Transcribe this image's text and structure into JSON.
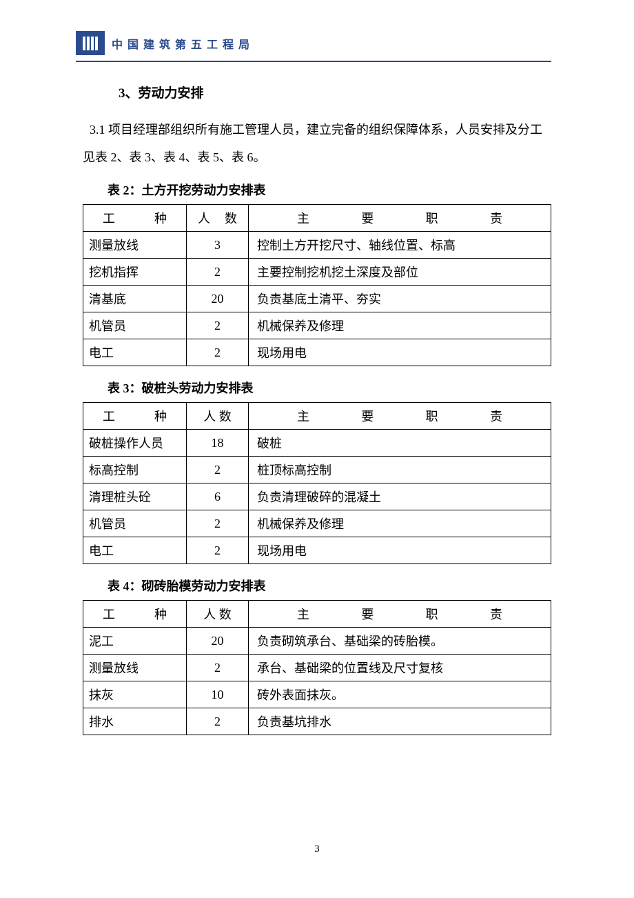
{
  "header": {
    "company_name": "中国建筑第五工程局",
    "logo_color": "#2a4b8d"
  },
  "section": {
    "title": "3、劳动力安排",
    "paragraph": "3.1 项目经理部组织所有施工管理人员，建立完备的组织保障体系，人员安排及分工见表 2、表 3、表 4、表 5、表 6。"
  },
  "tables": [
    {
      "caption": "表 2：土方开挖劳动力安排表",
      "headers": {
        "type": "工种",
        "count": "人数",
        "duty": "主要职责"
      },
      "rows": [
        {
          "type": "测量放线",
          "count": "3",
          "duty": "控制土方开挖尺寸、轴线位置、标高"
        },
        {
          "type": "挖机指挥",
          "count": "2",
          "duty": "主要控制挖机挖土深度及部位"
        },
        {
          "type": "清基底",
          "count": "20",
          "duty": "负责基底土清平、夯实"
        },
        {
          "type": "机管员",
          "count": "2",
          "duty": "机械保养及修理"
        },
        {
          "type": "电工",
          "count": "2",
          "duty": "现场用电"
        }
      ]
    },
    {
      "caption": "表 3：破桩头劳动力安排表",
      "headers": {
        "type": "工种",
        "count": "人 数",
        "duty": "主要职责"
      },
      "rows": [
        {
          "type": "破桩操作人员",
          "count": "18",
          "duty": "破桩"
        },
        {
          "type": "标高控制",
          "count": "2",
          "duty": "桩顶标高控制"
        },
        {
          "type": "清理桩头砼",
          "count": "6",
          "duty": "负责清理破碎的混凝土"
        },
        {
          "type": "机管员",
          "count": "2",
          "duty": "机械保养及修理"
        },
        {
          "type": "电工",
          "count": "2",
          "duty": "现场用电"
        }
      ]
    },
    {
      "caption": "表 4：砌砖胎模劳动力安排表",
      "headers": {
        "type": "工种",
        "count": "人 数",
        "duty": "主要职责"
      },
      "rows": [
        {
          "type": "泥工",
          "count": "20",
          "duty": "负责砌筑承台、基础梁的砖胎模。"
        },
        {
          "type": "测量放线",
          "count": "2",
          "duty": "承台、基础梁的位置线及尺寸复核"
        },
        {
          "type": "抹灰",
          "count": "10",
          "duty": "砖外表面抹灰。"
        },
        {
          "type": "排水",
          "count": "2",
          "duty": "负责基坑排水"
        }
      ]
    }
  ],
  "page_number": "3"
}
